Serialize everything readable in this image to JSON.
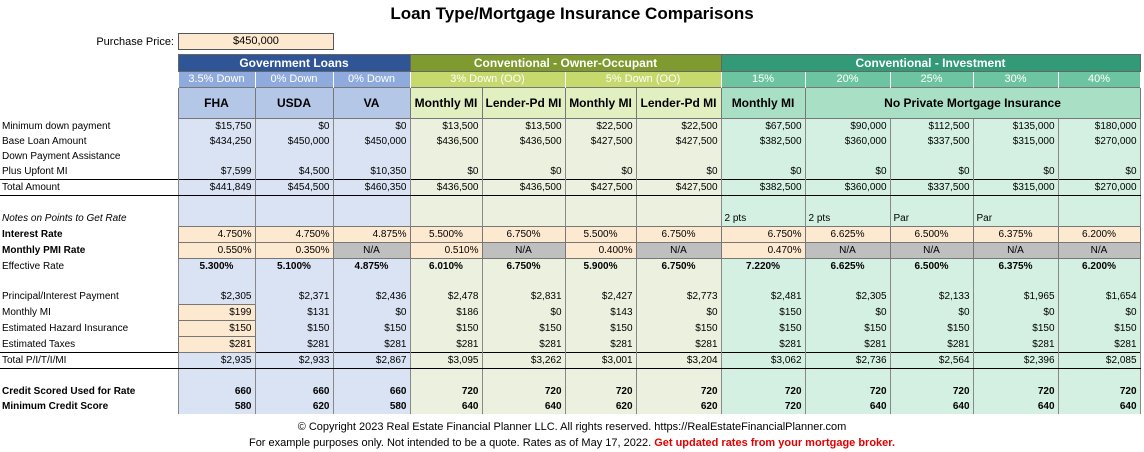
{
  "title": "Loan Type/Mortgage Insurance Comparisons",
  "purchase_price": {
    "label": "Purchase Price:",
    "value": "$450,000"
  },
  "groups": [
    {
      "label": "Government Loans",
      "span": 3,
      "cls": "bG"
    },
    {
      "label": "Conventional - Owner-Occupant",
      "span": 4,
      "cls": "bC"
    },
    {
      "label": "Conventional - Investment",
      "span": 5,
      "cls": "bI"
    }
  ],
  "columns": [
    {
      "sub": "3.5% Down",
      "type": "FHA",
      "g": "G"
    },
    {
      "sub": "0% Down",
      "type": "USDA",
      "g": "G"
    },
    {
      "sub": "0% Down",
      "type": "VA",
      "g": "G"
    },
    {
      "sub": "3% Down (OO)",
      "type": "Monthly MI",
      "g": "C"
    },
    {
      "sub": "",
      "type": "Lender-Pd MI",
      "g": "C"
    },
    {
      "sub": "5% Down (OO)",
      "type": "Monthly MI",
      "g": "C"
    },
    {
      "sub": "",
      "type": "Lender-Pd MI",
      "g": "C"
    },
    {
      "sub": "15%",
      "type": "Monthly MI",
      "g": "I"
    },
    {
      "sub": "20%",
      "type": "",
      "g": "I"
    },
    {
      "sub": "25%",
      "type": "",
      "g": "I"
    },
    {
      "sub": "30%",
      "type": "",
      "g": "I"
    },
    {
      "sub": "40%",
      "type": "",
      "g": "I"
    }
  ],
  "no_pmi_label": "No Private Mortgage Insurance",
  "rows": [
    {
      "label": "Minimum down payment",
      "values": [
        "$15,750",
        "$0",
        "$0",
        "$13,500",
        "$13,500",
        "$22,500",
        "$22,500",
        "$67,500",
        "$90,000",
        "$112,500",
        "$135,000",
        "$180,000"
      ]
    },
    {
      "label": "Base Loan Amount",
      "values": [
        "$434,250",
        "$450,000",
        "$450,000",
        "$436,500",
        "$436,500",
        "$427,500",
        "$427,500",
        "$382,500",
        "$360,000",
        "$337,500",
        "$315,000",
        "$270,000"
      ]
    },
    {
      "label": "Down Payment Assistance",
      "values": [
        "",
        "",
        "",
        "",
        "",
        "",
        "",
        "",
        "",
        "",
        "",
        ""
      ]
    },
    {
      "label": "Plus Upfont MI",
      "values": [
        "$7,599",
        "$4,500",
        "$10,350",
        "$0",
        "$0",
        "$0",
        "$0",
        "$0",
        "$0",
        "$0",
        "$0",
        "$0"
      ]
    },
    {
      "label": "Total Amount",
      "kind": "total",
      "values": [
        "$441,849",
        "$454,500",
        "$460,350",
        "$436,500",
        "$436,500",
        "$427,500",
        "$427,500",
        "$382,500",
        "$360,000",
        "$337,500",
        "$315,000",
        "$270,000"
      ]
    },
    {
      "label": "",
      "kind": "spacer",
      "values": [
        "",
        "",
        "",
        "",
        "",
        "",
        "",
        "",
        "",
        "",
        "",
        ""
      ]
    },
    {
      "label": "Notes on Points to Get Rate",
      "kind": "note",
      "values": [
        "",
        "",
        "",
        "",
        "",
        "",
        "",
        "2 pts",
        "2 pts",
        "Par",
        "Par",
        ""
      ]
    },
    {
      "label": "Interest Rate",
      "kind": "ir",
      "values": [
        "4.750%",
        "4.750%",
        "4.875%",
        "5.500%",
        "6.750%",
        "5.500%",
        "6.750%",
        "6.750%",
        "6.625%",
        "6.500%",
        "6.375%",
        "6.200%"
      ]
    },
    {
      "label": "Monthly PMI Rate",
      "kind": "pmi",
      "values": [
        "0.550%",
        "0.350%",
        "N/A",
        "0.510%",
        "N/A",
        "0.400%",
        "N/A",
        "0.470%",
        "N/A",
        "N/A",
        "N/A",
        "N/A"
      ]
    },
    {
      "label": "Effective Rate",
      "kind": "eff",
      "values": [
        "5.300%",
        "5.100%",
        "4.875%",
        "6.010%",
        "6.750%",
        "5.900%",
        "6.750%",
        "7.220%",
        "6.625%",
        "6.500%",
        "6.375%",
        "6.200%"
      ]
    },
    {
      "label": "",
      "kind": "spacer",
      "values": [
        "",
        "",
        "",
        "",
        "",
        "",
        "",
        "",
        "",
        "",
        "",
        ""
      ]
    },
    {
      "label": "Principal/Interest Payment",
      "values": [
        "$2,305",
        "$2,371",
        "$2,436",
        "$2,478",
        "$2,831",
        "$2,427",
        "$2,773",
        "$2,481",
        "$2,305",
        "$2,133",
        "$1,965",
        "$1,654"
      ]
    },
    {
      "label": "Monthly MI",
      "kind": "pk",
      "values": [
        "$199",
        "$131",
        "$0",
        "$186",
        "$0",
        "$143",
        "$0",
        "$150",
        "$0",
        "$0",
        "$0",
        "$0"
      ]
    },
    {
      "label": "Estimated Hazard Insurance",
      "kind": "pk",
      "values": [
        "$150",
        "$150",
        "$150",
        "$150",
        "$150",
        "$150",
        "$150",
        "$150",
        "$150",
        "$150",
        "$150",
        "$150"
      ]
    },
    {
      "label": "Estimated Taxes",
      "kind": "pk",
      "values": [
        "$281",
        "$281",
        "$281",
        "$281",
        "$281",
        "$281",
        "$281",
        "$281",
        "$281",
        "$281",
        "$281",
        "$281"
      ]
    },
    {
      "label": "Total P/I/T/I/MI",
      "kind": "total",
      "values": [
        "$2,935",
        "$2,933",
        "$2,867",
        "$3,095",
        "$3,262",
        "$3,001",
        "$3,204",
        "$3,062",
        "$2,736",
        "$2,564",
        "$2,396",
        "$2,085"
      ]
    },
    {
      "label": "",
      "kind": "spacer",
      "values": [
        "",
        "",
        "",
        "",
        "",
        "",
        "",
        "",
        "",
        "",
        "",
        ""
      ]
    },
    {
      "label": "Credit Scored Used for Rate",
      "kind": "b",
      "values": [
        "660",
        "660",
        "660",
        "720",
        "720",
        "720",
        "720",
        "720",
        "720",
        "720",
        "720",
        "720"
      ]
    },
    {
      "label": "Minimum Credit Score",
      "kind": "b",
      "values": [
        "580",
        "620",
        "580",
        "640",
        "640",
        "620",
        "620",
        "720",
        "640",
        "640",
        "640",
        "640"
      ]
    }
  ],
  "footer": {
    "copyright": "© Copyright 2023 Real Estate Financial Planner LLC. All rights reserved. https://RealEstateFinancialPlanner.com",
    "disclaimer": "For example purposes only. Not intended to be a quote. Rates as of May 17, 2022.",
    "warning": "Get updated rates from your mortgage broker."
  }
}
